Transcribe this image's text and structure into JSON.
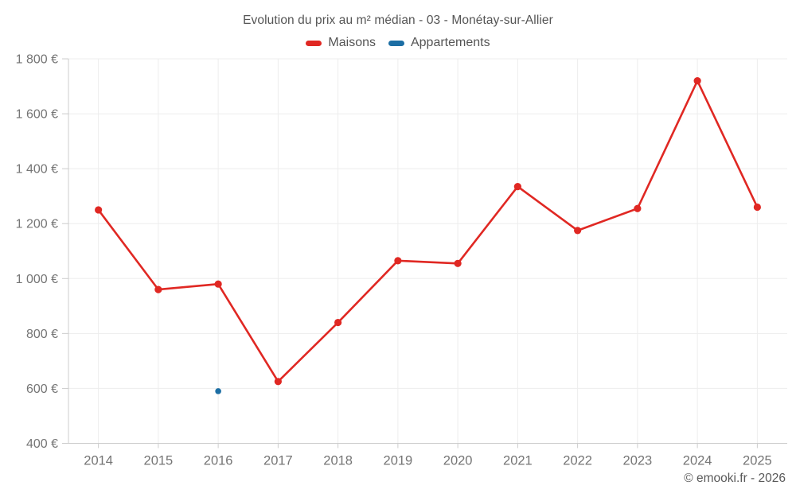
{
  "title": "Evolution du prix au m² médian - 03 - Monétay-sur-Allier",
  "legend": [
    {
      "label": "Maisons",
      "color": "#e02823"
    },
    {
      "label": "Appartements",
      "color": "#1c6ea4"
    }
  ],
  "footer": "© emooki.fr - 2026",
  "colors": {
    "maisons": "#e02823",
    "appartements": "#1c6ea4",
    "grid": "#ededed",
    "axis": "#cccccc",
    "tick": "#cccccc",
    "tick_text": "#757575",
    "title_text": "#555555",
    "background": "#ffffff"
  },
  "chart_data": {
    "type": "line",
    "title": "Evolution du prix au m² médian - 03 - Monétay-sur-Allier",
    "categories": [
      "2014",
      "2015",
      "2016",
      "2017",
      "2018",
      "2019",
      "2020",
      "2021",
      "2022",
      "2023",
      "2024",
      "2025"
    ],
    "series": [
      {
        "name": "Maisons",
        "color": "#e02823",
        "values": [
          1250,
          960,
          980,
          625,
          840,
          1065,
          1055,
          1335,
          1175,
          1255,
          1720,
          1260
        ]
      },
      {
        "name": "Appartements",
        "color": "#1c6ea4",
        "values": [
          null,
          null,
          590,
          null,
          null,
          null,
          null,
          null,
          null,
          null,
          null,
          null
        ]
      }
    ],
    "xlabel": "",
    "ylabel": "",
    "ylim": [
      400,
      1800
    ],
    "yticks": [
      {
        "value": 1800,
        "label": "1 800 €"
      },
      {
        "value": 1600,
        "label": "1 600 €"
      },
      {
        "value": 1400,
        "label": "1 400 €"
      },
      {
        "value": 1200,
        "label": "1 200 €"
      },
      {
        "value": 1000,
        "label": "1 000 €"
      },
      {
        "value": 800,
        "label": "800 €"
      },
      {
        "value": 600,
        "label": "600 €"
      },
      {
        "value": 400,
        "label": "400 €"
      }
    ],
    "grid": true,
    "legend_position": "top"
  }
}
